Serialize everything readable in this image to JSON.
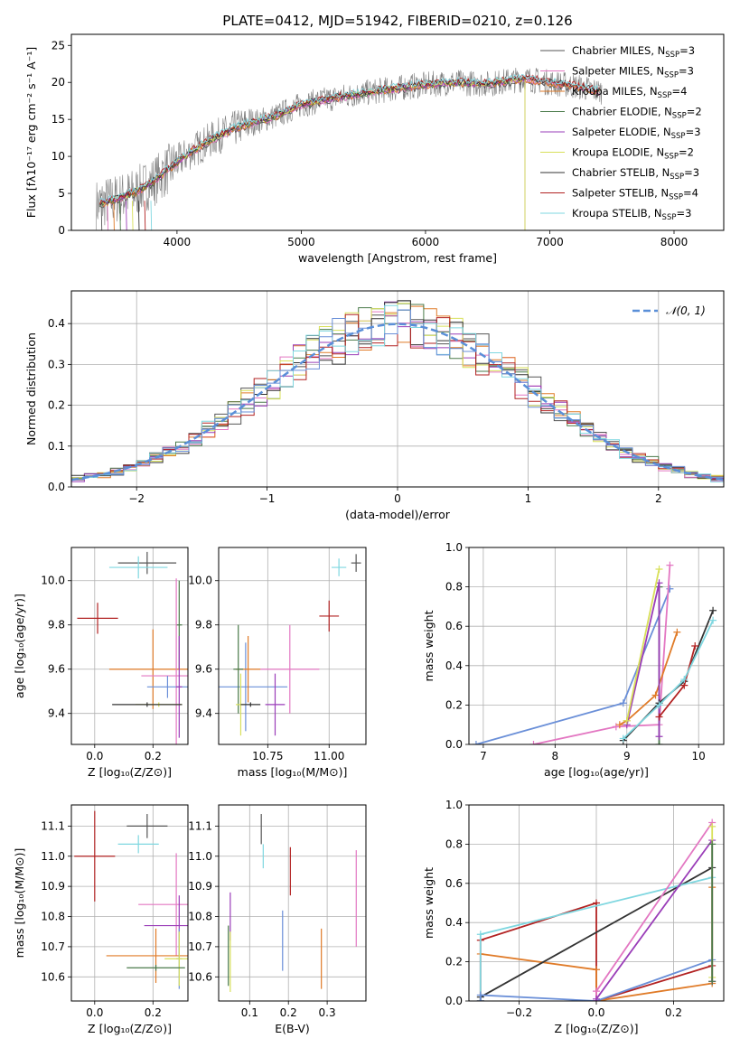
{
  "chart_data": [
    {
      "type": "line",
      "panel": "spectrum",
      "title": "PLATE=0412, MJD=51942, FIBERID=0210, z=0.126",
      "xlabel": "wavelength [Angstrom, rest frame]",
      "ylabel": "Flux [fλ10⁻¹⁷ erg cm⁻² s⁻¹ A⁻¹]",
      "xlim": [
        3150,
        8400
      ],
      "ylim": [
        0,
        26.5
      ],
      "xticks": [
        "4000",
        "5000",
        "6000",
        "7000",
        "8000"
      ],
      "yticks": [
        "0",
        "5",
        "10",
        "15",
        "20",
        "25"
      ],
      "legend_position": "top-right",
      "continuum": {
        "x": [
          3350,
          3500,
          3650,
          3800,
          3950,
          4100,
          4300,
          4500,
          4800,
          5000,
          5300,
          5600,
          5900,
          6200,
          6500,
          6800,
          7000,
          7200,
          7400
        ],
        "y": [
          3.5,
          4.2,
          5.0,
          6.5,
          8.5,
          10.5,
          12.5,
          14.0,
          15.5,
          17.0,
          18.0,
          18.8,
          19.5,
          20.0,
          19.8,
          20.5,
          20.0,
          19.5,
          18.8
        ]
      },
      "series": [
        {
          "name": "Chabrier MILES, N",
          "sub": "SSP",
          "suffix": "=3",
          "color": "#555555",
          "end": 7400
        },
        {
          "name": "Salpeter MILES, N",
          "sub": "SSP",
          "suffix": "=3",
          "color": "#e377c2",
          "end": 7400
        },
        {
          "name": "Kroupa MILES, N",
          "sub": "SSP",
          "suffix": "=4",
          "color": "#e07b28",
          "end": 7420
        },
        {
          "name": "Chabrier ELODIE, N",
          "sub": "SSP",
          "suffix": "=2",
          "color": "#4a7a4a",
          "end": 6800
        },
        {
          "name": "Salpeter ELODIE, N",
          "sub": "SSP",
          "suffix": "=3",
          "color": "#9a3db8",
          "end": 6800
        },
        {
          "name": "Kroupa ELODIE, N",
          "sub": "SSP",
          "suffix": "=2",
          "color": "#d8e05a",
          "end": 6800
        },
        {
          "name": "Chabrier STELIB, N",
          "sub": "SSP",
          "suffix": "=3",
          "color": "#333333",
          "end": 7400
        },
        {
          "name": "Salpeter STELIB, N",
          "sub": "SSP",
          "suffix": "=4",
          "color": "#b22222",
          "end": 7400
        },
        {
          "name": "Kroupa STELIB, N",
          "sub": "SSP",
          "suffix": "=3",
          "color": "#7fd7e0",
          "end": 7400
        }
      ]
    },
    {
      "type": "line",
      "panel": "residuals",
      "xlabel": "(data-model)/error",
      "ylabel": "Normed distribution",
      "xlim": [
        -2.5,
        2.5
      ],
      "ylim": [
        0,
        0.48
      ],
      "xticks": [
        "−2",
        "−1",
        "0",
        "1",
        "2"
      ],
      "yticks": [
        "0.0",
        "0.1",
        "0.2",
        "0.3",
        "0.4"
      ],
      "grid": true,
      "legend_position": "top-right",
      "reference": {
        "name": "𝒩(0, 1)",
        "color": "#5a8fd8"
      },
      "series_colors": [
        "#555555",
        "#e377c2",
        "#e07b28",
        "#4a7a4a",
        "#9a3db8",
        "#d8e05a",
        "#333333",
        "#b22222",
        "#7fd7e0",
        "#6a8fd8"
      ]
    },
    {
      "type": "scatter",
      "panel": "age-vs-Z",
      "xlabel": "Z [log₁₀(Z/Z⊙)]",
      "ylabel": "age  [log₁₀(age/yr)]",
      "xlim": [
        -0.08,
        0.32
      ],
      "ylim": [
        9.26,
        10.15
      ],
      "xticks": [
        "0.0",
        "0.2"
      ],
      "yticks": [
        "9.4",
        "9.6",
        "9.8",
        "10.0"
      ],
      "grid": true,
      "points": [
        {
          "color": "#555555",
          "x": 0.18,
          "y": 10.08,
          "xerr": 0.1,
          "yerr": 0.05
        },
        {
          "color": "#7fd7e0",
          "x": 0.15,
          "y": 10.06,
          "xerr": 0.1,
          "yerr": 0.05
        },
        {
          "color": "#b22222",
          "x": 0.01,
          "y": 9.83,
          "xerr": 0.07,
          "yerr": 0.07
        },
        {
          "color": "#4a7a4a",
          "x": 0.29,
          "y": 9.8,
          "xerr": 0.01,
          "yerr": 0.2
        },
        {
          "color": "#e07b28",
          "x": 0.2,
          "y": 9.6,
          "xerr": 0.15,
          "yerr": 0.18
        },
        {
          "color": "#e377c2",
          "x": 0.28,
          "y": 9.57,
          "xerr": 0.12,
          "yerr": 0.44
        },
        {
          "color": "#6a8fd8",
          "x": 0.25,
          "y": 9.52,
          "xerr": 0.07,
          "yerr": 0.05
        },
        {
          "color": "#9a3db8",
          "x": 0.29,
          "y": 9.52,
          "xerr": 0.01,
          "yerr": 0.23
        },
        {
          "color": "#d8e05a",
          "x": 0.22,
          "y": 9.44,
          "xerr": 0.08,
          "yerr": 0.01
        },
        {
          "color": "#333333",
          "x": 0.18,
          "y": 9.44,
          "xerr": 0.12,
          "yerr": 0.01
        }
      ]
    },
    {
      "type": "scatter",
      "panel": "age-vs-mass",
      "xlabel": "mass [log₁₀(M/M⊙)]",
      "xlim": [
        10.55,
        11.15
      ],
      "ylim": [
        9.26,
        10.15
      ],
      "xticks": [
        "10.75",
        "11.00"
      ],
      "yticks": [
        "9.4",
        "9.6",
        "9.8",
        "10.0"
      ],
      "grid": true,
      "points": [
        {
          "color": "#555555",
          "x": 11.11,
          "y": 10.08,
          "xerr": 0.02,
          "yerr": 0.04
        },
        {
          "color": "#7fd7e0",
          "x": 11.04,
          "y": 10.06,
          "xerr": 0.03,
          "yerr": 0.04
        },
        {
          "color": "#b22222",
          "x": 11.0,
          "y": 9.84,
          "xerr": 0.04,
          "yerr": 0.07
        },
        {
          "color": "#6a8fd8",
          "x": 10.66,
          "y": 9.52,
          "xerr": 0.17,
          "yerr": 0.2
        },
        {
          "color": "#e377c2",
          "x": 10.84,
          "y": 9.6,
          "xerr": 0.12,
          "yerr": 0.2
        },
        {
          "color": "#e07b28",
          "x": 10.67,
          "y": 9.6,
          "xerr": 0.05,
          "yerr": 0.15
        },
        {
          "color": "#4a7a4a",
          "x": 10.63,
          "y": 9.6,
          "xerr": 0.02,
          "yerr": 0.2
        },
        {
          "color": "#9a3db8",
          "x": 10.78,
          "y": 9.44,
          "xerr": 0.04,
          "yerr": 0.14
        },
        {
          "color": "#d8e05a",
          "x": 10.64,
          "y": 9.44,
          "xerr": 0.02,
          "yerr": 0.14
        },
        {
          "color": "#333333",
          "x": 10.68,
          "y": 9.44,
          "xerr": 0.04,
          "yerr": 0.01
        }
      ]
    },
    {
      "type": "line",
      "panel": "massweight-vs-age",
      "xlabel": "age  [log₁₀(age/yr)]",
      "ylabel": "mass weight",
      "xlim": [
        6.8,
        10.35
      ],
      "ylim": [
        0,
        1.0
      ],
      "xticks": [
        "7",
        "8",
        "9",
        "10"
      ],
      "yticks": [
        "0.0",
        "0.2",
        "0.4",
        "0.6",
        "0.8",
        "1.0"
      ],
      "grid": true,
      "series": [
        {
          "color": "#6a8fd8",
          "x": [
            6.9,
            8.95,
            9.6
          ],
          "y": [
            0.0,
            0.21,
            0.79
          ]
        },
        {
          "color": "#e377c2",
          "x": [
            7.7,
            8.85,
            9.45,
            9.6
          ],
          "y": [
            0.0,
            0.09,
            0.1,
            0.91
          ]
        },
        {
          "color": "#e07b28",
          "x": [
            8.9,
            9.0,
            9.4,
            9.7
          ],
          "y": [
            0.1,
            0.12,
            0.25,
            0.57
          ]
        },
        {
          "color": "#4a7a4a",
          "x": [
            9.45,
            9.45
          ],
          "y": [
            0.0,
            0.8
          ]
        },
        {
          "color": "#9a3db8",
          "x": [
            9.0,
            9.45,
            9.45
          ],
          "y": [
            0.1,
            0.82,
            0.04
          ]
        },
        {
          "color": "#d8e05a",
          "x": [
            9.0,
            9.45
          ],
          "y": [
            0.12,
            0.89
          ]
        },
        {
          "color": "#333333",
          "x": [
            8.95,
            9.45,
            9.8,
            10.2
          ],
          "y": [
            0.02,
            0.21,
            0.32,
            0.68
          ]
        },
        {
          "color": "#b22222",
          "x": [
            9.45,
            9.8,
            9.95
          ],
          "y": [
            0.14,
            0.3,
            0.5
          ]
        },
        {
          "color": "#7fd7e0",
          "x": [
            8.95,
            9.45,
            9.8,
            10.2
          ],
          "y": [
            0.03,
            0.2,
            0.33,
            0.63
          ]
        }
      ]
    },
    {
      "type": "scatter",
      "panel": "mass-vs-Z",
      "xlabel": "Z [log₁₀(Z/Z⊙)]",
      "ylabel": "mass [log₁₀(M/M⊙)]",
      "xlim": [
        -0.08,
        0.32
      ],
      "ylim": [
        10.52,
        11.17
      ],
      "xticks": [
        "0.0",
        "0.2"
      ],
      "yticks": [
        "10.6",
        "10.7",
        "10.8",
        "10.9",
        "11.0",
        "11.1"
      ],
      "grid": true,
      "points": [
        {
          "color": "#555555",
          "x": 0.18,
          "y": 11.1,
          "xerr": 0.07,
          "yerr": 0.04
        },
        {
          "color": "#7fd7e0",
          "x": 0.15,
          "y": 11.04,
          "xerr": 0.07,
          "yerr": 0.03
        },
        {
          "color": "#b22222",
          "x": 0.0,
          "y": 11.0,
          "xerr": 0.07,
          "yerr": 0.15
        },
        {
          "color": "#e377c2",
          "x": 0.28,
          "y": 10.84,
          "xerr": 0.13,
          "yerr": 0.17
        },
        {
          "color": "#9a3db8",
          "x": 0.29,
          "y": 10.77,
          "xerr": 0.12,
          "yerr": 0.1
        },
        {
          "color": "#e07b28",
          "x": 0.21,
          "y": 10.67,
          "xerr": 0.17,
          "yerr": 0.09
        },
        {
          "color": "#6a8fd8",
          "x": 0.29,
          "y": 10.66,
          "xerr": 0.01,
          "yerr": 0.1
        },
        {
          "color": "#d8e05a",
          "x": 0.29,
          "y": 10.66,
          "xerr": 0.05,
          "yerr": 0.09
        },
        {
          "color": "#4a7a4a",
          "x": 0.21,
          "y": 10.63,
          "xerr": 0.1,
          "yerr": 0.01
        }
      ]
    },
    {
      "type": "scatter",
      "panel": "mass-vs-EBV",
      "xlabel": "E(B-V)",
      "xlim": [
        0.02,
        0.4
      ],
      "ylim": [
        10.52,
        11.17
      ],
      "xticks": [
        "0.1",
        "0.2",
        "0.3"
      ],
      "yticks": [
        "10.6",
        "10.7",
        "10.8",
        "10.9",
        "11.0",
        "11.1"
      ],
      "grid": true,
      "points": [
        {
          "color": "#555555",
          "x": 0.13,
          "y": 11.09,
          "yerr": 0.05
        },
        {
          "color": "#7fd7e0",
          "x": 0.135,
          "y": 11.0,
          "yerr": 0.04
        },
        {
          "color": "#b22222",
          "x": 0.205,
          "y": 10.95,
          "yerr": 0.08
        },
        {
          "color": "#e377c2",
          "x": 0.375,
          "y": 10.86,
          "yerr": 0.16
        },
        {
          "color": "#9a3db8",
          "x": 0.05,
          "y": 10.8,
          "yerr": 0.08
        },
        {
          "color": "#6a8fd8",
          "x": 0.185,
          "y": 10.72,
          "yerr": 0.1
        },
        {
          "color": "#e07b28",
          "x": 0.285,
          "y": 10.66,
          "yerr": 0.1
        },
        {
          "color": "#d8e05a",
          "x": 0.05,
          "y": 10.65,
          "yerr": 0.1
        },
        {
          "color": "#4a7a4a",
          "x": 0.045,
          "y": 10.67,
          "yerr": 0.1
        }
      ]
    },
    {
      "type": "line",
      "panel": "massweight-vs-Z",
      "xlabel": "Z [log₁₀(Z/Z⊙)]",
      "ylabel": "mass weight",
      "xlim": [
        -0.33,
        0.33
      ],
      "ylim": [
        0,
        1.0
      ],
      "xticks": [
        "−0.2",
        "0.0",
        "0.2"
      ],
      "yticks": [
        "0.0",
        "0.2",
        "0.4",
        "0.6",
        "0.8",
        "1.0"
      ],
      "grid": true,
      "series": [
        {
          "color": "#b22222",
          "x": [
            -0.3,
            -0.3,
            0.0,
            0.0,
            0.3
          ],
          "y": [
            0.0,
            0.31,
            0.5,
            0.0,
            0.18
          ]
        },
        {
          "color": "#e07b28",
          "x": [
            -0.3,
            0.0,
            0.0,
            0.3,
            0.3
          ],
          "y": [
            0.24,
            0.16,
            0.0,
            0.09,
            0.58
          ]
        },
        {
          "color": "#333333",
          "x": [
            -0.3,
            -0.3,
            0.3
          ],
          "y": [
            0.0,
            0.02,
            0.68
          ]
        },
        {
          "color": "#7fd7e0",
          "x": [
            -0.3,
            -0.3,
            0.3
          ],
          "y": [
            0.0,
            0.34,
            0.63
          ]
        },
        {
          "color": "#6a8fd8",
          "x": [
            -0.3,
            -0.3,
            0.0,
            0.3
          ],
          "y": [
            0.0,
            0.03,
            0.0,
            0.21
          ]
        },
        {
          "color": "#e377c2",
          "x": [
            0.0,
            0.0,
            0.3
          ],
          "y": [
            0.0,
            0.05,
            0.91
          ]
        },
        {
          "color": "#9a3db8",
          "x": [
            0.0,
            0.0,
            0.3,
            0.3
          ],
          "y": [
            0.0,
            0.01,
            0.82,
            0.1
          ]
        },
        {
          "color": "#d8e05a",
          "x": [
            0.3,
            0.3
          ],
          "y": [
            0.12,
            0.89
          ]
        },
        {
          "color": "#4a7a4a",
          "x": [
            0.3,
            0.3
          ],
          "y": [
            0.1,
            0.8
          ]
        }
      ]
    }
  ]
}
